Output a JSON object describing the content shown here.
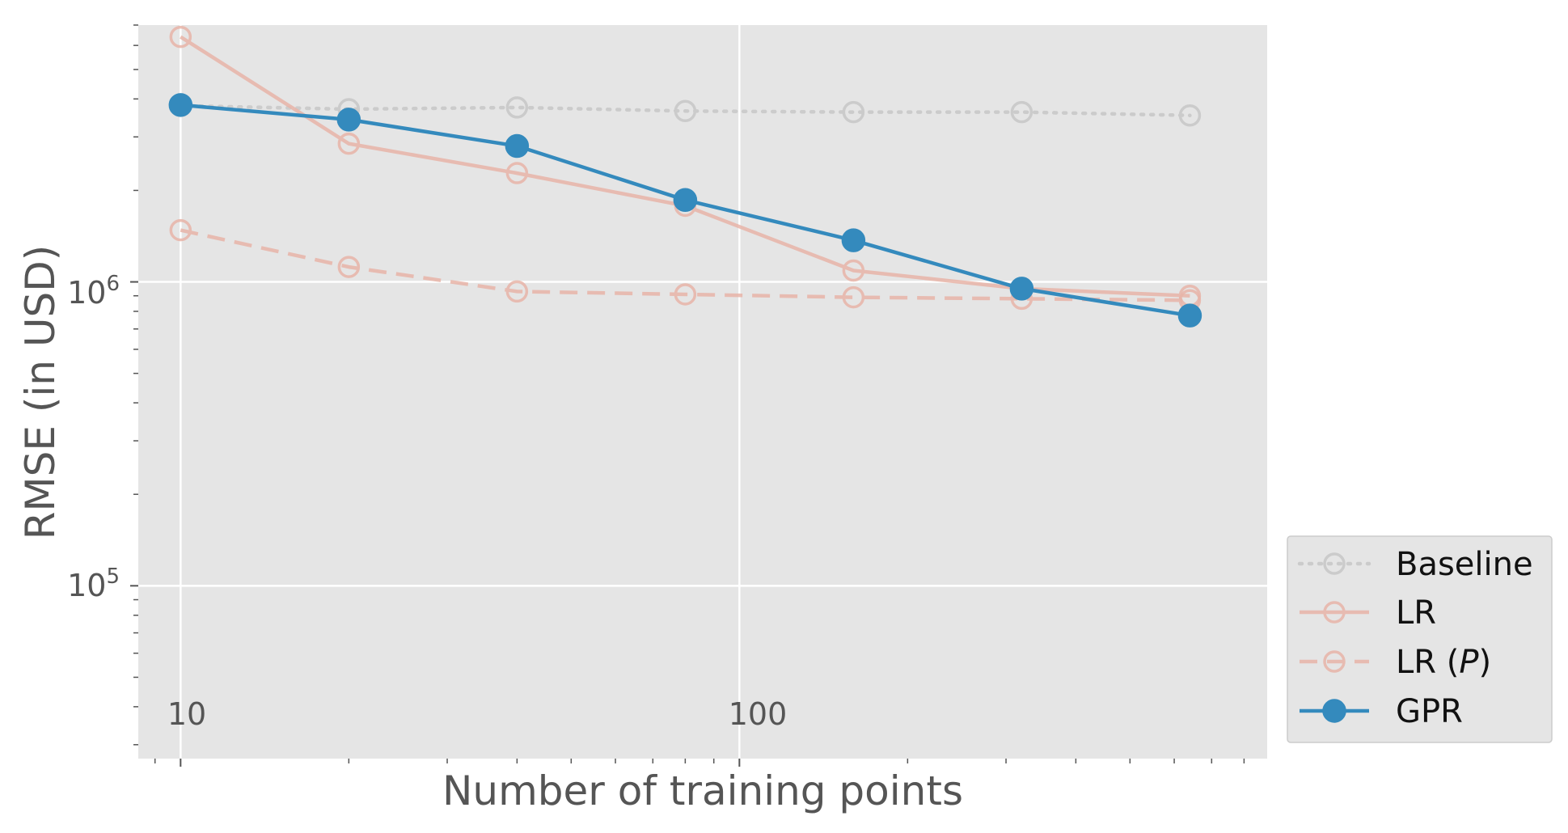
{
  "chart_data": {
    "type": "line",
    "xlabel": "Number of training points",
    "ylabel": "RMSE (in USD)",
    "xscale": "log",
    "yscale": "log",
    "xlim": [
      8.4,
      880
    ],
    "ylim": [
      27000,
      7000000
    ],
    "x_ticks": [
      10,
      100
    ],
    "x_tick_labels": [
      "10",
      "100"
    ],
    "y_ticks": [
      100000,
      1000000
    ],
    "y_tick_labels": [
      {
        "base": "10",
        "exp": "5"
      },
      {
        "base": "10",
        "exp": "6"
      }
    ],
    "grid": true,
    "legend_position": "outside-bottom-right",
    "x": [
      10,
      20,
      40,
      80,
      160,
      320,
      640
    ],
    "series": [
      {
        "name": "Baseline",
        "values": [
          3800000,
          3700000,
          3750000,
          3650000,
          3620000,
          3620000,
          3530000
        ],
        "color": "#bbbbbb",
        "line": "dotted",
        "marker": "open-circle"
      },
      {
        "name": "LR",
        "values": [
          6400000,
          2850000,
          2280000,
          1780000,
          1090000,
          950000,
          900000
        ],
        "color": "#e8b4a8",
        "line": "solid",
        "marker": "open-circle"
      },
      {
        "name": "LR (P)",
        "values": [
          1480000,
          1120000,
          930000,
          910000,
          890000,
          880000,
          870000
        ],
        "color": "#e8b4a8",
        "line": "dashed",
        "marker": "open-circle"
      },
      {
        "name": "GPR",
        "values": [
          3820000,
          3420000,
          2800000,
          1860000,
          1370000,
          950000,
          775000
        ],
        "color": "#348abd",
        "line": "solid",
        "marker": "filled-circle"
      }
    ],
    "legend": [
      {
        "label": "Baseline"
      },
      {
        "label": "LR"
      },
      {
        "label_prefix": "LR (",
        "label_italic": "P",
        "label_suffix": ")"
      },
      {
        "label": "GPR"
      }
    ]
  }
}
